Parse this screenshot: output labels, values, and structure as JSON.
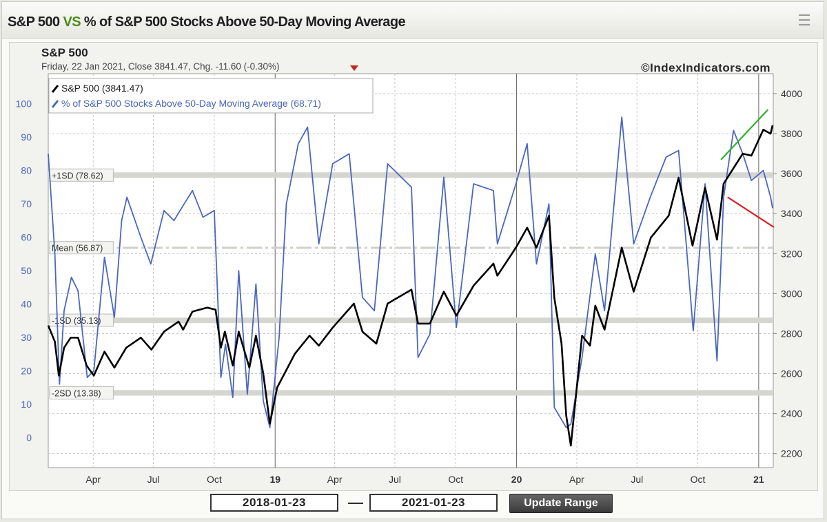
{
  "header": {
    "title_part1": "S&P 500",
    "title_vs": "VS",
    "title_part2": "% of S&P 500 Stocks Above 50-Day Moving Average",
    "menu_icon": "hamburger-menu-icon"
  },
  "chart_header": {
    "title": "S&P 500",
    "subtitle": "Friday, 22 Jan 2021, Close 3841.47, Chg. -11.60 (-0.30%)",
    "watermark": "©IndexIndicators.com"
  },
  "legend": [
    {
      "label": "S&P 500 (3841.47)",
      "color": "#000000"
    },
    {
      "label": "% of S&P 500 Stocks Above 50-Day Moving Average (68.71)",
      "color": "#4a66c0"
    }
  ],
  "bands": [
    {
      "label": "+1SD (78.62)",
      "value": 78.62
    },
    {
      "label": "Mean (56.87)",
      "value": 56.87
    },
    {
      "label": "-1SD (35.13)",
      "value": 35.13
    },
    {
      "label": "-2SD (13.38)",
      "value": 13.38
    }
  ],
  "colors": {
    "sp500": "#000000",
    "pct": "#4a66c0",
    "trend_up": "#2db02d",
    "trend_down": "#d82020",
    "down_arrow": "#c0281c"
  },
  "range": {
    "start": "2018-01-23",
    "end": "2021-01-23",
    "separator": "—",
    "update_label": "Update Range"
  },
  "chart_data": {
    "type": "line",
    "title": "S&P 500",
    "x_ticks": [
      "Apr",
      "Jul",
      "Oct",
      "19",
      "Apr",
      "Jul",
      "Oct",
      "20",
      "Apr",
      "Jul",
      "Oct",
      "21"
    ],
    "x_tick_dates": [
      "2018-04-01",
      "2018-07-01",
      "2018-10-01",
      "2019-01-01",
      "2019-04-01",
      "2019-07-01",
      "2019-10-01",
      "2020-01-01",
      "2020-04-01",
      "2020-07-01",
      "2020-10-01",
      "2021-01-01"
    ],
    "xlim": [
      "2018-01-23",
      "2021-01-23"
    ],
    "left_axis": {
      "ticks": [
        0,
        10,
        20,
        30,
        40,
        50,
        60,
        70,
        80,
        90,
        100
      ],
      "ylim": [
        -9,
        109
      ]
    },
    "right_axis": {
      "ticks": [
        2200,
        2400,
        2600,
        2800,
        3000,
        3200,
        3400,
        3600,
        3800,
        4000
      ],
      "ylim": [
        2130,
        4100
      ]
    },
    "grid": true,
    "legend_position": "top-left",
    "series": [
      {
        "name": "S&P 500 (3841.47)",
        "axis": "right",
        "points": [
          [
            "2018-01-23",
            2840
          ],
          [
            "2018-02-02",
            2760
          ],
          [
            "2018-02-08",
            2590
          ],
          [
            "2018-02-16",
            2730
          ],
          [
            "2018-02-26",
            2780
          ],
          [
            "2018-03-09",
            2780
          ],
          [
            "2018-03-22",
            2640
          ],
          [
            "2018-04-02",
            2590
          ],
          [
            "2018-04-18",
            2710
          ],
          [
            "2018-05-03",
            2630
          ],
          [
            "2018-05-21",
            2730
          ],
          [
            "2018-06-12",
            2780
          ],
          [
            "2018-06-28",
            2720
          ],
          [
            "2018-07-17",
            2810
          ],
          [
            "2018-08-08",
            2860
          ],
          [
            "2018-08-15",
            2820
          ],
          [
            "2018-08-29",
            2910
          ],
          [
            "2018-09-20",
            2930
          ],
          [
            "2018-10-03",
            2920
          ],
          [
            "2018-10-11",
            2730
          ],
          [
            "2018-10-17",
            2810
          ],
          [
            "2018-10-29",
            2640
          ],
          [
            "2018-11-07",
            2810
          ],
          [
            "2018-11-23",
            2630
          ],
          [
            "2018-12-03",
            2790
          ],
          [
            "2018-12-14",
            2600
          ],
          [
            "2018-12-24",
            2350
          ],
          [
            "2019-01-04",
            2530
          ],
          [
            "2019-01-31",
            2700
          ],
          [
            "2019-02-22",
            2790
          ],
          [
            "2019-03-08",
            2740
          ],
          [
            "2019-03-29",
            2830
          ],
          [
            "2019-04-30",
            2950
          ],
          [
            "2019-05-13",
            2810
          ],
          [
            "2019-06-03",
            2750
          ],
          [
            "2019-06-20",
            2950
          ],
          [
            "2019-07-26",
            3020
          ],
          [
            "2019-08-05",
            2850
          ],
          [
            "2019-08-23",
            2850
          ],
          [
            "2019-09-13",
            3010
          ],
          [
            "2019-10-02",
            2890
          ],
          [
            "2019-10-28",
            3040
          ],
          [
            "2019-11-27",
            3150
          ],
          [
            "2019-12-03",
            3090
          ],
          [
            "2019-12-31",
            3230
          ],
          [
            "2020-01-17",
            3330
          ],
          [
            "2020-01-31",
            3230
          ],
          [
            "2020-02-19",
            3390
          ],
          [
            "2020-02-27",
            2980
          ],
          [
            "2020-03-09",
            2750
          ],
          [
            "2020-03-16",
            2390
          ],
          [
            "2020-03-23",
            2240
          ],
          [
            "2020-04-09",
            2790
          ],
          [
            "2020-04-21",
            2740
          ],
          [
            "2020-04-29",
            2940
          ],
          [
            "2020-05-13",
            2820
          ],
          [
            "2020-06-08",
            3230
          ],
          [
            "2020-06-26",
            3010
          ],
          [
            "2020-07-22",
            3280
          ],
          [
            "2020-08-18",
            3390
          ],
          [
            "2020-09-02",
            3580
          ],
          [
            "2020-09-23",
            3240
          ],
          [
            "2020-10-12",
            3530
          ],
          [
            "2020-10-30",
            3270
          ],
          [
            "2020-11-09",
            3550
          ],
          [
            "2020-12-08",
            3700
          ],
          [
            "2020-12-21",
            3690
          ],
          [
            "2021-01-08",
            3820
          ],
          [
            "2021-01-19",
            3800
          ],
          [
            "2021-01-22",
            3841.47
          ]
        ]
      },
      {
        "name": "% of S&P 500 Stocks Above 50-Day Moving Average (68.71)",
        "axis": "left",
        "points": [
          [
            "2018-01-23",
            85
          ],
          [
            "2018-02-02",
            55
          ],
          [
            "2018-02-09",
            16
          ],
          [
            "2018-02-16",
            38
          ],
          [
            "2018-02-27",
            48
          ],
          [
            "2018-03-09",
            44
          ],
          [
            "2018-03-23",
            18
          ],
          [
            "2018-04-02",
            20
          ],
          [
            "2018-04-18",
            54
          ],
          [
            "2018-05-03",
            36
          ],
          [
            "2018-05-14",
            65
          ],
          [
            "2018-05-22",
            72
          ],
          [
            "2018-06-12",
            60
          ],
          [
            "2018-06-27",
            52
          ],
          [
            "2018-07-17",
            68
          ],
          [
            "2018-08-01",
            65
          ],
          [
            "2018-08-29",
            74
          ],
          [
            "2018-09-14",
            66
          ],
          [
            "2018-10-01",
            68
          ],
          [
            "2018-10-11",
            18
          ],
          [
            "2018-10-18",
            28
          ],
          [
            "2018-10-29",
            12
          ],
          [
            "2018-11-07",
            50
          ],
          [
            "2018-11-20",
            13
          ],
          [
            "2018-12-03",
            46
          ],
          [
            "2018-12-14",
            11
          ],
          [
            "2018-12-24",
            3
          ],
          [
            "2019-01-07",
            30
          ],
          [
            "2019-01-18",
            70
          ],
          [
            "2019-02-05",
            88
          ],
          [
            "2019-02-19",
            93
          ],
          [
            "2019-03-08",
            58
          ],
          [
            "2019-03-29",
            82
          ],
          [
            "2019-04-23",
            85
          ],
          [
            "2019-05-13",
            42
          ],
          [
            "2019-05-31",
            38
          ],
          [
            "2019-06-20",
            82
          ],
          [
            "2019-07-26",
            75
          ],
          [
            "2019-08-05",
            24
          ],
          [
            "2019-08-23",
            31
          ],
          [
            "2019-09-13",
            78
          ],
          [
            "2019-10-02",
            33
          ],
          [
            "2019-10-28",
            76
          ],
          [
            "2019-11-27",
            74
          ],
          [
            "2019-12-03",
            58
          ],
          [
            "2019-12-31",
            76
          ],
          [
            "2020-01-17",
            88
          ],
          [
            "2020-01-31",
            52
          ],
          [
            "2020-02-19",
            70
          ],
          [
            "2020-02-27",
            9
          ],
          [
            "2020-03-16",
            3
          ],
          [
            "2020-03-23",
            4
          ],
          [
            "2020-04-09",
            24
          ],
          [
            "2020-04-29",
            55
          ],
          [
            "2020-05-13",
            38
          ],
          [
            "2020-06-08",
            96
          ],
          [
            "2020-06-26",
            58
          ],
          [
            "2020-07-21",
            72
          ],
          [
            "2020-08-14",
            84
          ],
          [
            "2020-09-02",
            86
          ],
          [
            "2020-09-24",
            32
          ],
          [
            "2020-10-12",
            76
          ],
          [
            "2020-10-30",
            23
          ],
          [
            "2020-11-09",
            72
          ],
          [
            "2020-11-24",
            92
          ],
          [
            "2020-12-08",
            85
          ],
          [
            "2020-12-21",
            77
          ],
          [
            "2021-01-08",
            80
          ],
          [
            "2021-01-19",
            72
          ],
          [
            "2021-01-22",
            68.71
          ]
        ]
      }
    ]
  }
}
